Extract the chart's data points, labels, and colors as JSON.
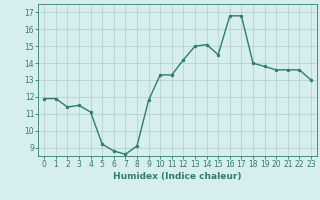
{
  "x": [
    0,
    1,
    2,
    3,
    4,
    5,
    6,
    7,
    8,
    9,
    10,
    11,
    12,
    13,
    14,
    15,
    16,
    17,
    18,
    19,
    20,
    21,
    22,
    23
  ],
  "y": [
    11.9,
    11.9,
    11.4,
    11.5,
    11.1,
    9.2,
    8.8,
    8.6,
    9.1,
    11.8,
    13.3,
    13.3,
    14.2,
    15.0,
    15.1,
    14.5,
    16.8,
    16.8,
    14.0,
    13.8,
    13.6,
    13.6,
    13.6,
    13.0
  ],
  "xlabel": "Humidex (Indice chaleur)",
  "ylim": [
    8.5,
    17.5
  ],
  "xlim": [
    -0.5,
    23.5
  ],
  "yticks": [
    9,
    10,
    11,
    12,
    13,
    14,
    15,
    16,
    17
  ],
  "xticks": [
    0,
    1,
    2,
    3,
    4,
    5,
    6,
    7,
    8,
    9,
    10,
    11,
    12,
    13,
    14,
    15,
    16,
    17,
    18,
    19,
    20,
    21,
    22,
    23
  ],
  "line_color": "#2e7d6e",
  "marker_color": "#2e7d6e",
  "bg_color": "#d6eeee",
  "grid_color": "#b0cccc",
  "marker_size": 2.0,
  "line_width": 1.0,
  "tick_fontsize": 5.5,
  "xlabel_fontsize": 6.5
}
